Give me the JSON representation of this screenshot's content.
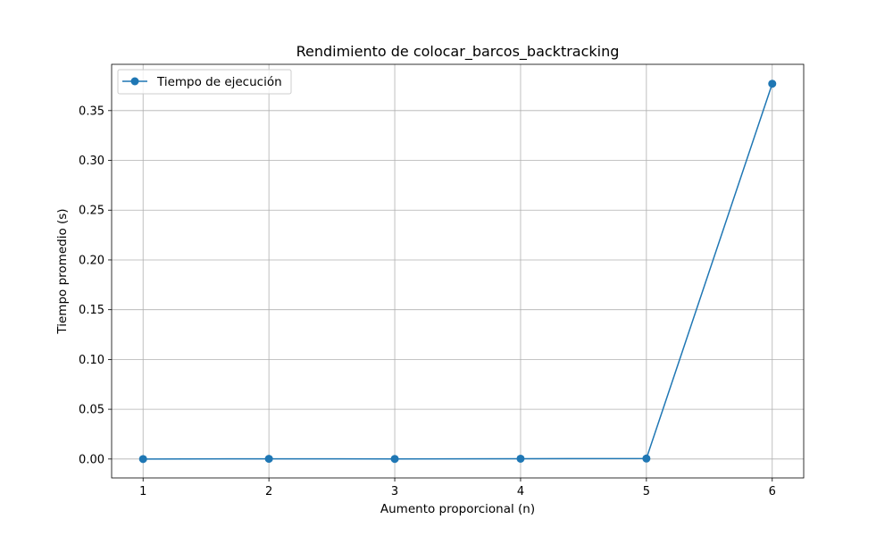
{
  "chart_data": {
    "type": "line",
    "title": "Rendimiento de colocar_barcos_backtracking",
    "xlabel": "Aumento proporcional (n)",
    "ylabel": "Tiempo promedio (s)",
    "x": [
      1,
      2,
      3,
      4,
      5,
      6
    ],
    "x_ticks": [
      "1",
      "2",
      "3",
      "4",
      "5",
      "6"
    ],
    "xlim": [
      0.75,
      6.25
    ],
    "ylim": [
      -0.019,
      0.3965
    ],
    "y_ticks": [
      0.0,
      0.05,
      0.1,
      0.15,
      0.2,
      0.25,
      0.3,
      0.35
    ],
    "y_tick_labels": [
      "0.00",
      "0.05",
      "0.10",
      "0.15",
      "0.20",
      "0.25",
      "0.30",
      "0.35"
    ],
    "grid": true,
    "legend_position": "top-left",
    "series": [
      {
        "name": "Tiempo de ejecución",
        "color": "#1f77b4",
        "marker": "circle",
        "values": [
          0.0,
          0.0002,
          0.0001,
          0.0003,
          0.0005,
          0.377
        ]
      }
    ]
  }
}
